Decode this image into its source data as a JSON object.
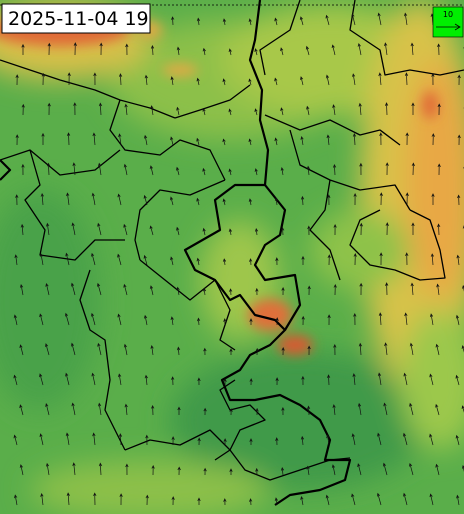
{
  "timestamp": "2025-11-04 19",
  "legend": {
    "label": "10"
  }
}
